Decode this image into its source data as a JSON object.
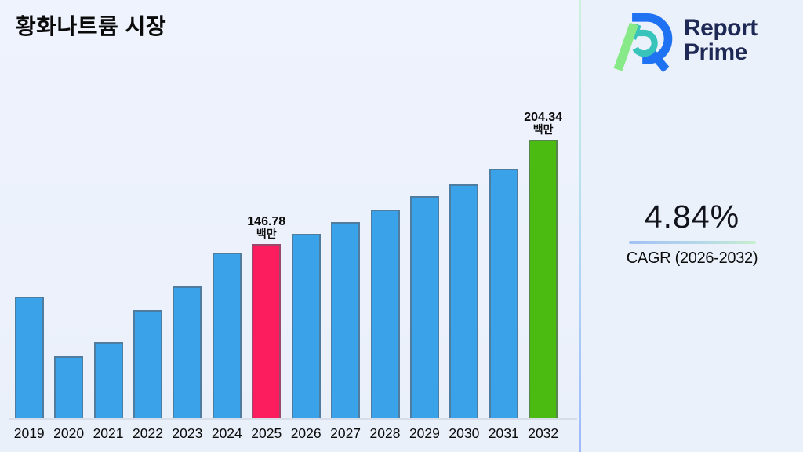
{
  "header": {
    "title": "황화나트륨 시장"
  },
  "logo": {
    "line1": "Report",
    "line2": "Prime"
  },
  "stat": {
    "value": "4.84%",
    "caption": "CAGR (2026-2032)"
  },
  "chart_data": {
    "type": "bar",
    "title": "황화나트륨 시장",
    "categories": [
      "2019",
      "2020",
      "2021",
      "2022",
      "2023",
      "2024",
      "2025",
      "2026",
      "2027",
      "2028",
      "2029",
      "2030",
      "2031",
      "2032"
    ],
    "values": [
      117.4,
      84.5,
      92.3,
      110.4,
      123.4,
      141.6,
      146.78,
      152.4,
      158.7,
      165.8,
      173.2,
      179.7,
      188.3,
      204.34
    ],
    "unit_label": "백만",
    "annotations": [
      {
        "category": "2025",
        "line1": "146.78",
        "line2": "백만"
      },
      {
        "category": "2032",
        "line1": "204.34",
        "line2": "백만"
      }
    ],
    "bar_color_default": "#3aa2e9",
    "bar_color_highlights": {
      "2025": "#fb1d5e",
      "2032": "#4cbb11"
    },
    "ylim": [
      50,
      215
    ],
    "xlabel": "",
    "ylabel": "",
    "grid": false,
    "legend": false
  },
  "colors": {
    "background_left": "#edf2fc",
    "background_right": "#ebf1fa",
    "divider_top": "#cdf2dd",
    "divider_bottom": "#9db9fb",
    "logo_text": "#1e2a55",
    "logo_blue": "#1f72f1",
    "logo_teal": "#38c3bb",
    "logo_green": "#87e987",
    "axis_line": "#d8dee9"
  }
}
